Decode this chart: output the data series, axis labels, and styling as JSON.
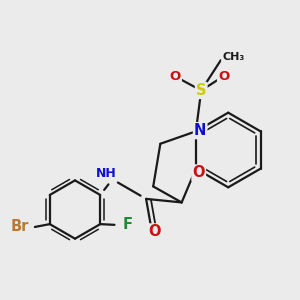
{
  "bg_color": "#ebebeb",
  "bond_color": "#1a1a1a",
  "bond_width": 1.6,
  "atom_colors": {
    "N": "#1010cc",
    "O": "#cc1010",
    "S": "#cccc00",
    "Br": "#bb7733",
    "F": "#228833",
    "H": "#555555",
    "C": "#1a1a1a"
  },
  "font_size": 9.5
}
